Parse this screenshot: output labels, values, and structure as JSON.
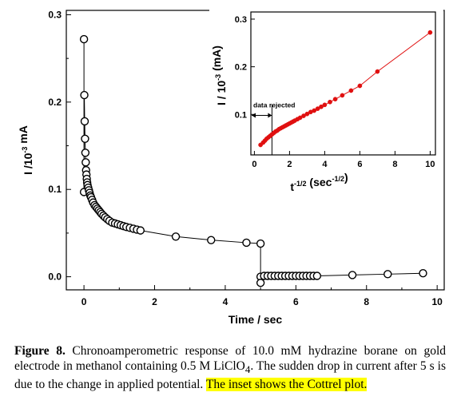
{
  "chart_data": [
    {
      "type": "scatter",
      "xlabel": "Time / sec",
      "ylabel": "I /10-3 mA",
      "xlim": [
        -0.5,
        10.2
      ],
      "ylim": [
        -0.015,
        0.305
      ],
      "xticks": [
        0,
        2,
        4,
        6,
        8,
        10
      ],
      "yticks": [
        0.0,
        0.1,
        0.2,
        0.3
      ],
      "xtick_labels": [
        "0",
        "2",
        "4",
        "6",
        "8",
        "10"
      ],
      "ytick_labels": [
        "0.0",
        "0.1",
        "0.2",
        "0.3"
      ],
      "marker": "open-circle",
      "color": "#000000",
      "grid": false,
      "series": [
        {
          "x": [
            0.0,
            0.0,
            0.01,
            0.02,
            0.03,
            0.04,
            0.05,
            0.06,
            0.07,
            0.08,
            0.09,
            0.1,
            0.12,
            0.14,
            0.16,
            0.18,
            0.2,
            0.23,
            0.26,
            0.3,
            0.34,
            0.38,
            0.42,
            0.46,
            0.5,
            0.55,
            0.6,
            0.66,
            0.72,
            0.8,
            0.88,
            0.96,
            1.04,
            1.12,
            1.2,
            1.3,
            1.4,
            1.5,
            1.6,
            2.6,
            3.6,
            4.6,
            5.0,
            5.0,
            5.0,
            5.1,
            5.2,
            5.3,
            5.4,
            5.5,
            5.6,
            5.7,
            5.8,
            5.9,
            6.0,
            6.1,
            6.2,
            6.3,
            6.4,
            6.5,
            6.6,
            7.6,
            8.6,
            9.6
          ],
          "y": [
            0.272,
            0.097,
            0.208,
            0.178,
            0.158,
            0.142,
            0.131,
            0.122,
            0.117,
            0.112,
            0.108,
            0.105,
            0.102,
            0.099,
            0.096,
            0.093,
            0.091,
            0.088,
            0.085,
            0.082,
            0.08,
            0.078,
            0.076,
            0.074,
            0.072,
            0.07,
            0.068,
            0.066,
            0.064,
            0.062,
            0.061,
            0.06,
            0.059,
            0.058,
            0.057,
            0.056,
            0.055,
            0.054,
            0.053,
            0.046,
            0.042,
            0.039,
            0.038,
            0.0,
            -0.007,
            0.001,
            0.001,
            0.001,
            0.001,
            0.001,
            0.001,
            0.001,
            0.001,
            0.001,
            0.001,
            0.001,
            0.001,
            0.001,
            0.001,
            0.001,
            0.001,
            0.002,
            0.003,
            0.004
          ]
        }
      ]
    },
    {
      "type": "line",
      "xlabel": "t-1/2 (sec-1/2)",
      "ylabel": "I / 10-3 (mA)",
      "xlim": [
        -0.2,
        10.3
      ],
      "ylim": [
        0.015,
        0.315
      ],
      "xticks": [
        0,
        2,
        4,
        6,
        8,
        10
      ],
      "yticks": [
        0.1,
        0.2,
        0.3
      ],
      "xtick_labels": [
        "0",
        "2",
        "4",
        "6",
        "8",
        "10"
      ],
      "ytick_labels": [
        "0.1",
        "0.2",
        "0.3"
      ],
      "color": "#e01010",
      "marker": "filled-circle",
      "grid": false,
      "annotation": "data rejected",
      "annotation_x": 1.0,
      "series": [
        {
          "x": [
            0.35,
            0.5,
            0.6,
            0.7,
            0.8,
            0.9,
            1.0,
            1.1,
            1.2,
            1.3,
            1.4,
            1.5,
            1.6,
            1.7,
            1.8,
            1.9,
            2.0,
            2.1,
            2.2,
            2.3,
            2.45,
            2.6,
            2.8,
            3.0,
            3.2,
            3.4,
            3.6,
            3.8,
            4.0,
            4.3,
            4.6,
            5.0,
            5.5,
            6.0,
            7.0,
            10.0
          ],
          "y": [
            0.036,
            0.041,
            0.045,
            0.049,
            0.052,
            0.055,
            0.058,
            0.061,
            0.064,
            0.066,
            0.069,
            0.071,
            0.073,
            0.075,
            0.077,
            0.079,
            0.081,
            0.083,
            0.085,
            0.087,
            0.09,
            0.093,
            0.097,
            0.101,
            0.105,
            0.108,
            0.112,
            0.116,
            0.12,
            0.126,
            0.132,
            0.14,
            0.15,
            0.16,
            0.19,
            0.272
          ]
        }
      ]
    }
  ],
  "caption": {
    "label": "Figure 8.",
    "text": " Chronoamperometric response of 10.0 mM hydrazine borane on gold electrode in methanol containing 0.5 M LiClO",
    "subscript": "4",
    "text2": ". The sudden drop in current after 5 s is due to the change in applied potential. ",
    "highlight": "The inset shows the Cottrel plot."
  }
}
